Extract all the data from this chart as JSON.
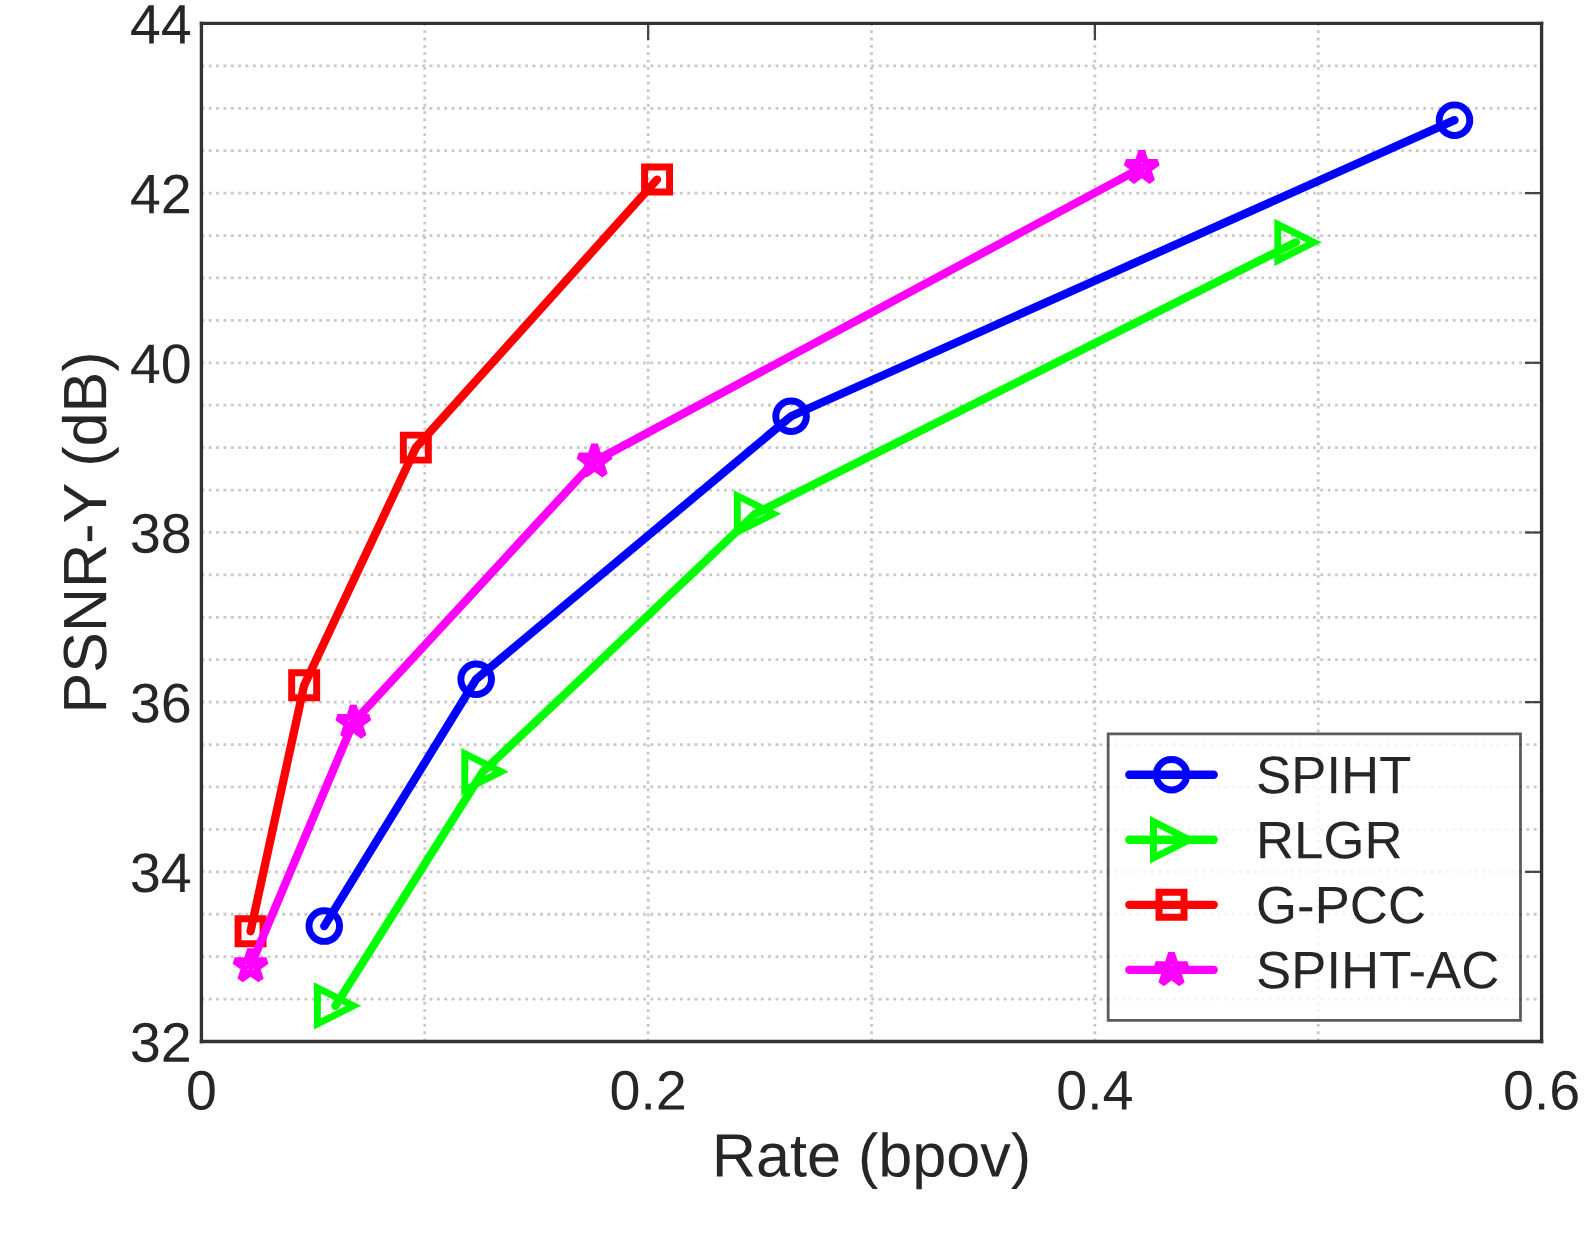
{
  "chart_data": {
    "type": "line",
    "xlabel": "Rate (bpov)",
    "ylabel": "PSNR-Y (dB)",
    "xlim": [
      0,
      0.6
    ],
    "xticks": [
      0,
      0.2,
      0.4,
      0.6
    ],
    "ylim": [
      32,
      44
    ],
    "yticks": [
      32,
      34,
      36,
      38,
      40,
      42,
      44
    ],
    "grid": true,
    "legend": "bottom right",
    "line_style": "solid",
    "series": [
      {
        "name": "SPIHT",
        "color": "#0000ff",
        "marker": "circle",
        "x": [
          0.055,
          0.123,
          0.264,
          0.561
        ],
        "values": [
          33.36,
          36.27,
          39.37,
          42.86
        ]
      },
      {
        "name": "RLGR",
        "color": "#00ff00",
        "marker": "triangle",
        "x": [
          0.06,
          0.126,
          0.248,
          0.49
        ],
        "values": [
          32.42,
          35.18,
          38.22,
          41.42
        ]
      },
      {
        "name": "G-PCC",
        "color": "#ff0000",
        "marker": "square",
        "x": [
          0.022,
          0.046,
          0.096,
          0.204
        ],
        "values": [
          33.3,
          36.2,
          39.0,
          42.16
        ]
      },
      {
        "name": "SPIHT-AC",
        "color": "#ff00ff",
        "marker": "star",
        "x": [
          0.022,
          0.068,
          0.176,
          0.421
        ],
        "values": [
          32.89,
          35.76,
          38.84,
          42.3
        ]
      }
    ]
  }
}
